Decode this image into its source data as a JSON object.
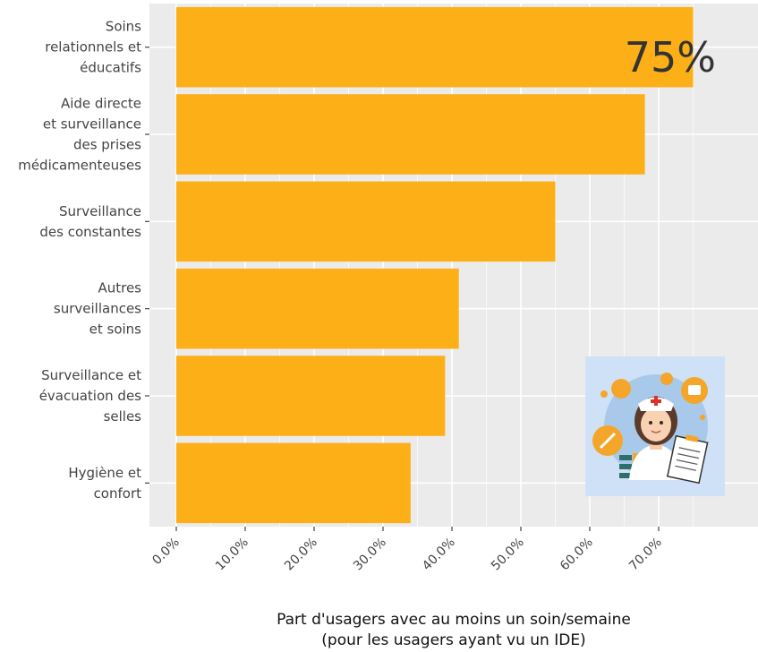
{
  "chart_data": {
    "type": "bar",
    "orientation": "horizontal",
    "categories": [
      [
        "Soins",
        "relationnels et",
        "éducatifs"
      ],
      [
        "Aide directe",
        "et surveillance",
        "des prises",
        "médicamenteuses"
      ],
      [
        "Surveillance",
        "des constantes"
      ],
      [
        "Autres",
        "surveillances",
        "et soins"
      ],
      [
        "Surveillance et",
        "évacuation des",
        "selles"
      ],
      [
        "Hygiène et",
        "confort"
      ]
    ],
    "values": [
      75,
      68,
      55,
      41,
      39,
      34
    ],
    "xlim": [
      0,
      77
    ],
    "xticks": [
      "0.0%",
      "10.0%",
      "20.0%",
      "30.0%",
      "40.0%",
      "50.0%",
      "60.0%",
      "70.0%"
    ],
    "xlabel": [
      "Part d'usagers avec au moins un soin/semaine",
      "(pour les usagers ayant vu un IDE)"
    ],
    "annotation": "75%",
    "grid": true,
    "colors": {
      "bar": "#FCAF17",
      "panel": "#EBEBEB",
      "grid": "#FFFFFF",
      "icon_bg": "#CFE1F7"
    }
  },
  "icon": "nurse-illustration-icon"
}
